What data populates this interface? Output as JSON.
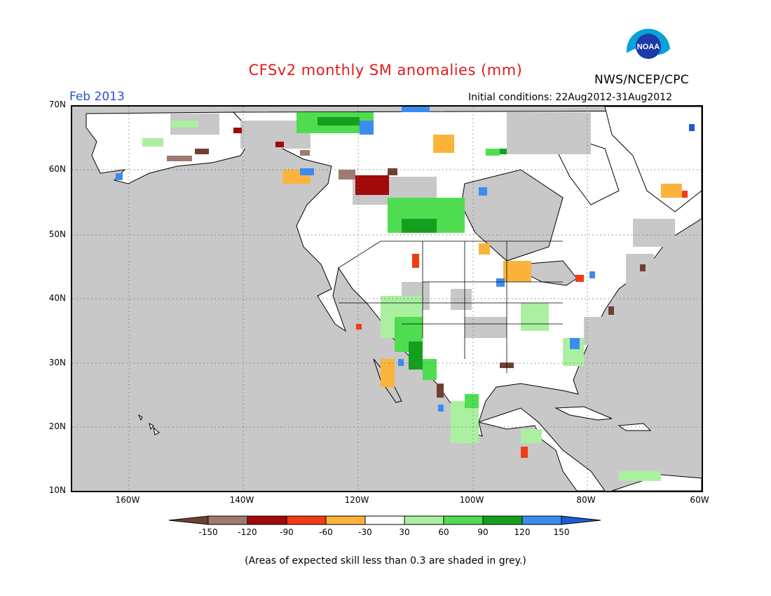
{
  "title": "CFSv2 monthly SM anomalies (mm)",
  "agency": "NWS/NCEP/CPC",
  "valid_period": "Feb 2013",
  "initial_conditions": "Initial conditions: 22Aug2012-31Aug2012",
  "logo_text": "NOAA",
  "lat_labels": [
    "70N",
    "60N",
    "50N",
    "40N",
    "30N",
    "20N",
    "10N"
  ],
  "lon_labels": [
    "160W",
    "140W",
    "120W",
    "100W",
    "80W",
    "60W"
  ],
  "colorbar": {
    "labels": [
      "-150",
      "-120",
      "-90",
      "-60",
      "-30",
      "30",
      "60",
      "90",
      "120",
      "150"
    ],
    "colors": [
      "#6e4034",
      "#a07a70",
      "#a00a0a",
      "#f03c14",
      "#fab43c",
      "#ffffff",
      "#aaf0a0",
      "#50dc50",
      "#14a01e",
      "#3c8cf0",
      "#1e5ad2"
    ]
  },
  "footnote": "(Areas of expected skill less than 0.3 are shaded in grey.)",
  "colors": {
    "ocean": "#c8c8c8",
    "land": "#ffffff",
    "title": "#e01c1c",
    "valid_period": "#2a4fd6"
  }
}
